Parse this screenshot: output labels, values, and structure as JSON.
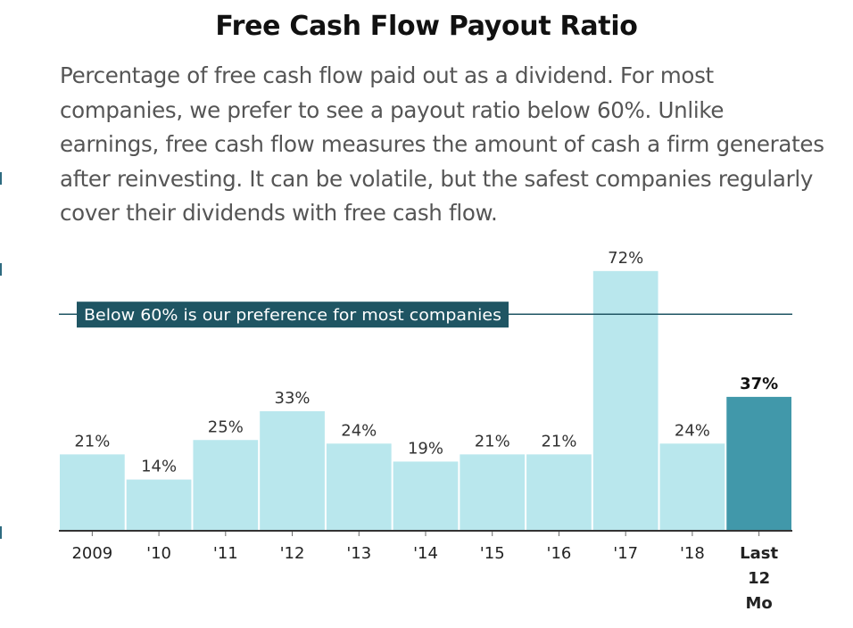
{
  "title": "Free Cash Flow Payout Ratio",
  "description": "Percentage of free cash flow paid out as a dividend. For most companies, we prefer to see a payout ratio below 60%. Unlike earnings, free cash flow measures the amount of cash a firm generates after reinvesting. It can be volatile, but the safest companies regularly cover their dividends with free cash flow.",
  "reference_line": {
    "value": 60,
    "label": "Below 60% is our preference for most companies",
    "color": "#1f5563"
  },
  "colors": {
    "bar": "#b9e7ed",
    "highlight_bar": "#4198aa",
    "axis": "#333333"
  },
  "chart_data": {
    "type": "bar",
    "categories": [
      "2009",
      "'10",
      "'11",
      "'12",
      "'13",
      "'14",
      "'15",
      "'16",
      "'17",
      "'18",
      "Last 12 Mo"
    ],
    "values": [
      21,
      14,
      25,
      33,
      24,
      19,
      21,
      21,
      72,
      24,
      37
    ],
    "value_labels": [
      "21%",
      "14%",
      "25%",
      "33%",
      "24%",
      "19%",
      "21%",
      "21%",
      "72%",
      "24%",
      "37%"
    ],
    "highlight_index": 10,
    "ylim": [
      0,
      75
    ],
    "title": "Free Cash Flow Payout Ratio",
    "xlabel": "",
    "ylabel": ""
  }
}
